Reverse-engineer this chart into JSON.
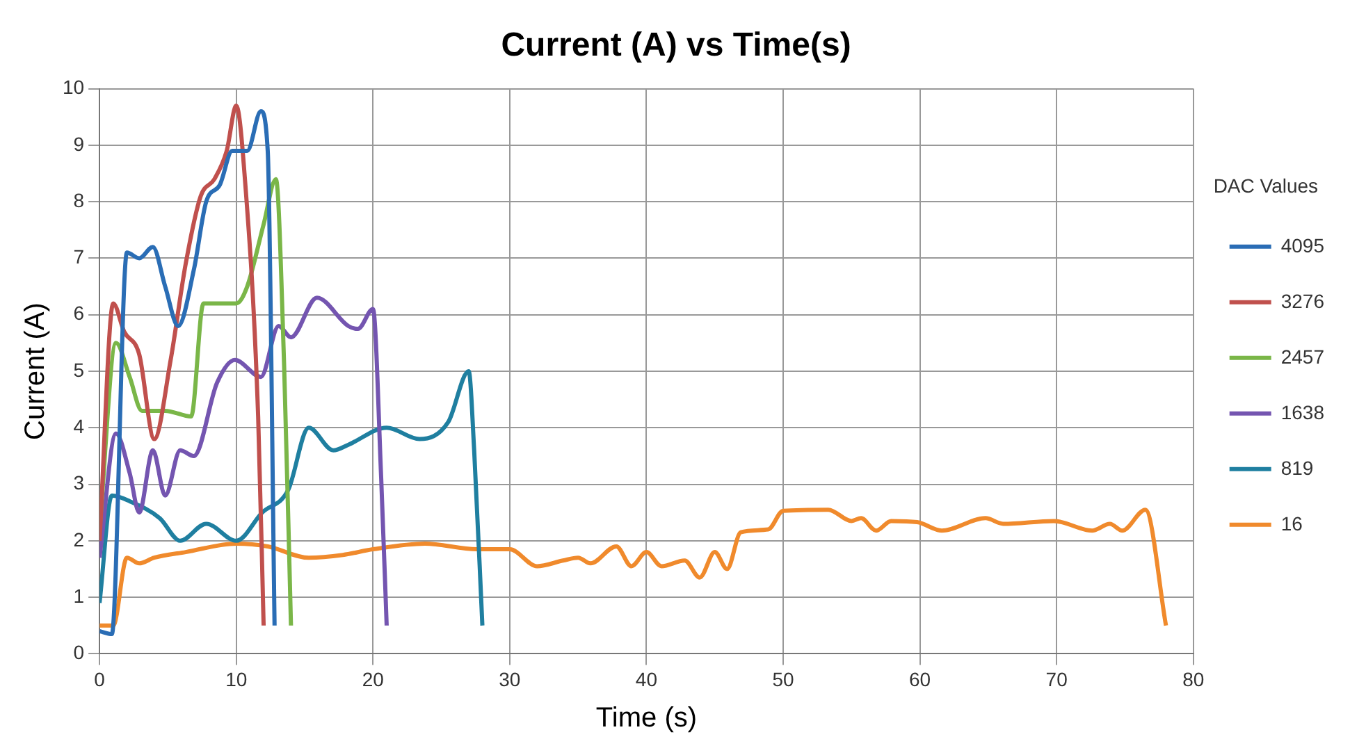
{
  "chart_data": {
    "type": "line",
    "title": "Current (A) vs Time(s)",
    "xlabel": "Time (s)",
    "ylabel": "Current (A)",
    "legend_title": "DAC Values",
    "legend": "right",
    "grid": true,
    "marker": "none",
    "line_style": "solid",
    "xlim": [
      0,
      80
    ],
    "xticks": [
      0,
      10,
      20,
      30,
      40,
      50,
      60,
      70,
      80
    ],
    "ylim": [
      0,
      10
    ],
    "yticks": [
      0,
      1,
      2,
      3,
      4,
      5,
      6,
      7,
      8,
      9,
      10
    ],
    "series": [
      {
        "name": "4095",
        "color": "#2a6db5",
        "x": [
          0,
          0.9,
          2,
          2.9,
          3.9,
          4.8,
          5.75,
          6.9,
          7.8,
          8.8,
          9.7,
          10.8,
          11.8,
          12.3,
          12.8
        ],
        "values": [
          0.4,
          0.35,
          7.1,
          7,
          7.2,
          6.5,
          5.8,
          6.8,
          8,
          8.3,
          8.9,
          8.9,
          9.6,
          8.9,
          0.5
        ]
      },
      {
        "name": "3276",
        "color": "#c0504d",
        "x": [
          0,
          1,
          1.8,
          2.9,
          4,
          5.2,
          6.3,
          7.4,
          8.4,
          9.3,
          10,
          10.6,
          11.6,
          12
        ],
        "values": [
          2,
          6.2,
          5.7,
          5.3,
          3.8,
          5.2,
          6.9,
          8.1,
          8.4,
          8.9,
          9.7,
          8.5,
          4.2,
          0.5
        ]
      },
      {
        "name": "2457",
        "color": "#7ab648",
        "x": [
          0,
          1.2,
          2.2,
          3.1,
          4.8,
          6.7,
          7.6,
          10,
          10.8,
          12,
          12.9,
          13.5,
          14
        ],
        "values": [
          2.2,
          5.5,
          4.9,
          4.3,
          4.3,
          4.2,
          6.2,
          6.2,
          6.5,
          7.6,
          8.4,
          5.1,
          0.5
        ]
      },
      {
        "name": "1638",
        "color": "#7455b0",
        "x": [
          0,
          1.2,
          2.2,
          2.9,
          3.9,
          4.8,
          5.9,
          6.9,
          8.6,
          9.9,
          11.8,
          13.1,
          14,
          15.9,
          18.2,
          18.9,
          20,
          20.6,
          21
        ],
        "values": [
          1.7,
          3.9,
          3.2,
          2.5,
          3.6,
          2.8,
          3.6,
          3.5,
          4.8,
          5.2,
          4.9,
          5.8,
          5.6,
          6.3,
          5.8,
          5.75,
          6.1,
          3.1,
          0.5
        ]
      },
      {
        "name": "819",
        "color": "#1f7fa0",
        "x": [
          0,
          0.9,
          2.2,
          4.4,
          5.9,
          7.8,
          10,
          11.9,
          13.8,
          15.3,
          17.1,
          18.2,
          21,
          23.4,
          25.5,
          27,
          27.4,
          28
        ],
        "values": [
          0.9,
          2.8,
          2.7,
          2.4,
          2,
          2.3,
          2,
          2.5,
          2.9,
          4,
          3.6,
          3.7,
          4,
          3.8,
          4.1,
          5,
          3.6,
          0.5
        ]
      },
      {
        "name": "16",
        "color": "#f08a2c",
        "x": [
          0,
          1,
          2,
          2.9,
          4,
          6.3,
          10,
          12.3,
          15.3,
          17.8,
          20,
          23.8,
          27.6,
          30,
          32,
          33.9,
          35,
          35.9,
          37.8,
          38.9,
          40,
          41.1,
          42.8,
          43.9,
          45,
          45.9,
          46.9,
          48.9,
          50,
          53.3,
          55,
          55.7,
          56.8,
          57.9,
          59.8,
          61.6,
          64.8,
          66.1,
          69.8,
          72.6,
          73.9,
          74.8,
          76.5,
          78
        ],
        "values": [
          0.5,
          0.5,
          1.7,
          1.6,
          1.7,
          1.8,
          1.95,
          1.9,
          1.7,
          1.75,
          1.85,
          1.95,
          1.85,
          1.85,
          1.55,
          1.65,
          1.7,
          1.6,
          1.9,
          1.55,
          1.8,
          1.55,
          1.65,
          1.35,
          1.8,
          1.5,
          2.15,
          2.2,
          2.53,
          2.55,
          2.35,
          2.4,
          2.18,
          2.35,
          2.33,
          2.18,
          2.4,
          2.3,
          2.35,
          2.18,
          2.3,
          2.18,
          2.55,
          0.5
        ]
      }
    ]
  }
}
